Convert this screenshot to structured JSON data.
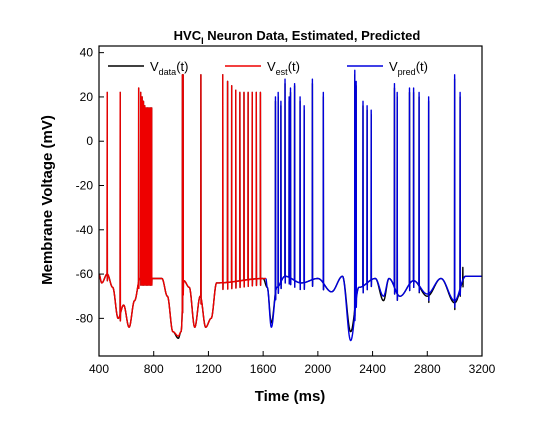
{
  "chart_data": {
    "type": "line",
    "title": {
      "main": "HVC",
      "sub": "I",
      "rest": " Neuron   Data, Estimated, Predicted"
    },
    "xlabel": "Time    (ms)",
    "ylabel": "Membrane Voltage     (mV)",
    "xlim": [
      400,
      3200
    ],
    "ylim": [
      -97,
      43
    ],
    "x_ticks": [
      400,
      800,
      1200,
      1600,
      2000,
      2400,
      2800,
      3200
    ],
    "y_ticks": [
      -80,
      -60,
      -40,
      -20,
      0,
      20,
      40
    ],
    "legend_position": "top",
    "legend": [
      {
        "main": "V",
        "sub": "data",
        "tail": "(t)",
        "color": "#000000"
      },
      {
        "main": "V",
        "sub": "est",
        "tail": "(t)",
        "color": "#ee0000"
      },
      {
        "main": "V",
        "sub": "pred",
        "tail": "(t)",
        "color": "#0000dd"
      }
    ],
    "series": [
      {
        "key": "data",
        "color": "#000000",
        "x_range": [
          400,
          3200
        ],
        "baseline_segments": [
          [
            400,
            -60
          ],
          [
            420,
            -64
          ],
          [
            460,
            -60
          ],
          [
            500,
            -66
          ],
          [
            540,
            -80
          ],
          [
            580,
            -74
          ],
          [
            620,
            -84
          ],
          [
            660,
            -72
          ],
          [
            700,
            -62
          ],
          [
            860,
            -62
          ],
          [
            900,
            -70
          ],
          [
            940,
            -86
          ],
          [
            980,
            -89
          ],
          [
            1000,
            -86
          ],
          [
            1020,
            -63
          ],
          [
            1060,
            -66
          ],
          [
            1100,
            -84
          ],
          [
            1140,
            -70
          ],
          [
            1180,
            -84
          ],
          [
            1220,
            -80
          ],
          [
            1260,
            -64
          ],
          [
            1600,
            -62
          ],
          [
            1630,
            -66
          ],
          [
            1660,
            -82
          ],
          [
            1700,
            -66
          ],
          [
            1760,
            -61
          ],
          [
            1880,
            -64
          ],
          [
            2000,
            -62
          ],
          [
            2100,
            -68
          ],
          [
            2180,
            -61
          ],
          [
            2240,
            -86
          ],
          [
            2300,
            -66
          ],
          [
            2420,
            -62
          ],
          [
            2480,
            -72
          ],
          [
            2520,
            -62
          ],
          [
            2600,
            -70
          ],
          [
            2700,
            -63
          ],
          [
            2800,
            -70
          ],
          [
            2900,
            -62
          ],
          [
            3000,
            -73
          ],
          [
            3080,
            -61
          ],
          [
            3200,
            -61
          ]
        ],
        "spike_times": [
          460,
          555,
          690,
          705,
          715,
          725,
          735,
          745,
          755,
          765,
          775,
          785,
          1010,
          1015,
          1145,
          1305,
          1340,
          1370,
          1400,
          1430,
          1460,
          1490,
          1520,
          1550,
          1580,
          1690,
          1710,
          1730,
          1760,
          1790,
          1800,
          1830,
          1870,
          1900,
          1960,
          2040,
          2270,
          2280,
          2330,
          2360,
          2390,
          2560,
          2580,
          2670,
          2700,
          2740,
          2810,
          3000,
          3040,
          3060
        ],
        "spike_peaks": [
          22,
          22,
          24,
          22,
          20,
          18,
          16,
          15,
          15,
          15,
          15,
          15,
          30,
          30,
          30,
          30,
          27,
          25,
          23,
          22,
          22,
          22,
          22,
          22,
          22,
          18,
          20,
          16,
          26,
          18,
          22,
          25,
          18,
          14,
          26,
          20,
          30,
          25,
          16,
          14,
          12,
          24,
          20,
          22,
          22,
          20,
          18,
          28,
          20,
          -57
        ]
      },
      {
        "key": "est",
        "color": "#ee0000",
        "x_range": [
          400,
          1620
        ],
        "baseline_segments": [
          [
            400,
            -60
          ],
          [
            420,
            -64
          ],
          [
            460,
            -60
          ],
          [
            500,
            -66
          ],
          [
            540,
            -80
          ],
          [
            580,
            -74
          ],
          [
            620,
            -84
          ],
          [
            660,
            -72
          ],
          [
            700,
            -62
          ],
          [
            860,
            -62
          ],
          [
            900,
            -70
          ],
          [
            940,
            -86
          ],
          [
            980,
            -88
          ],
          [
            1000,
            -86
          ],
          [
            1020,
            -63
          ],
          [
            1060,
            -66
          ],
          [
            1100,
            -84
          ],
          [
            1140,
            -70
          ],
          [
            1180,
            -84
          ],
          [
            1220,
            -80
          ],
          [
            1260,
            -64
          ],
          [
            1620,
            -62
          ]
        ],
        "spike_times": [
          460,
          555,
          690,
          705,
          715,
          725,
          735,
          745,
          755,
          765,
          775,
          785,
          1010,
          1015,
          1145,
          1305,
          1340,
          1370,
          1400,
          1430,
          1460,
          1490,
          1520,
          1550,
          1580
        ],
        "spike_peaks": [
          22,
          22,
          24,
          22,
          20,
          18,
          16,
          15,
          15,
          15,
          15,
          15,
          30,
          30,
          30,
          30,
          27,
          25,
          23,
          22,
          22,
          22,
          22,
          22,
          22
        ]
      },
      {
        "key": "pred",
        "color": "#0000dd",
        "x_range": [
          1620,
          3200
        ],
        "baseline_segments": [
          [
            1620,
            -62
          ],
          [
            1630,
            -66
          ],
          [
            1660,
            -84
          ],
          [
            1700,
            -66
          ],
          [
            1760,
            -61
          ],
          [
            1880,
            -64
          ],
          [
            2000,
            -62
          ],
          [
            2100,
            -68
          ],
          [
            2180,
            -61
          ],
          [
            2240,
            -90
          ],
          [
            2300,
            -66
          ],
          [
            2420,
            -62
          ],
          [
            2480,
            -70
          ],
          [
            2520,
            -62
          ],
          [
            2600,
            -70
          ],
          [
            2700,
            -63
          ],
          [
            2800,
            -69
          ],
          [
            2900,
            -62
          ],
          [
            3000,
            -72
          ],
          [
            3080,
            -61
          ],
          [
            3200,
            -61
          ]
        ],
        "spike_times": [
          1690,
          1710,
          1730,
          1760,
          1790,
          1800,
          1830,
          1870,
          1900,
          1960,
          2040,
          2270,
          2280,
          2330,
          2360,
          2390,
          2560,
          2580,
          2670,
          2700,
          2740,
          2810,
          3000,
          3040
        ],
        "spike_peaks": [
          20,
          22,
          18,
          28,
          20,
          24,
          26,
          20,
          16,
          28,
          22,
          32,
          27,
          18,
          16,
          14,
          26,
          22,
          24,
          24,
          22,
          20,
          30,
          22
        ]
      }
    ]
  }
}
